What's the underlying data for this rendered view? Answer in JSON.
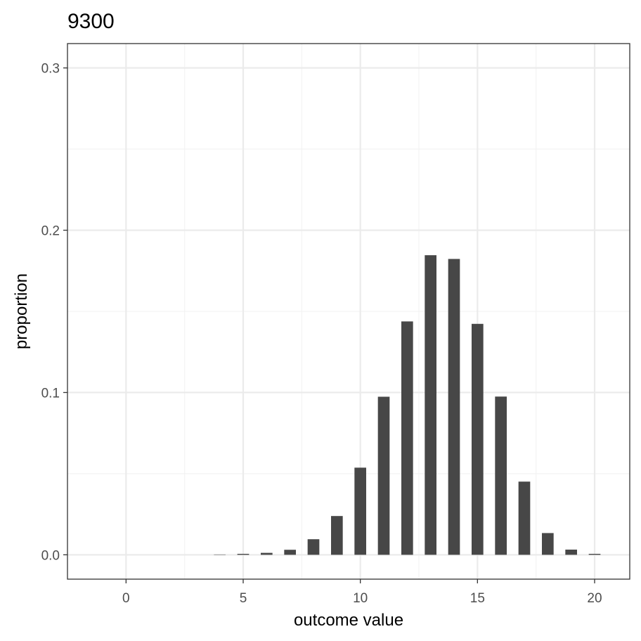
{
  "chart_data": {
    "type": "bar",
    "title": "9300",
    "xlabel": "outcome value",
    "ylabel": "proportion",
    "x": [
      0,
      1,
      2,
      3,
      4,
      5,
      6,
      7,
      8,
      9,
      10,
      11,
      12,
      13,
      14,
      15,
      16,
      17,
      18,
      19,
      20
    ],
    "values": [
      0,
      0,
      0,
      0,
      0.0002,
      0.0006,
      0.0012,
      0.0031,
      0.0096,
      0.0239,
      0.0537,
      0.0974,
      0.1438,
      0.1846,
      0.1823,
      0.1423,
      0.0975,
      0.0451,
      0.0134,
      0.0032,
      0.0006
    ],
    "xlim": [
      -2.5,
      21.5
    ],
    "ylim": [
      -0.015,
      0.315
    ],
    "x_ticks": [
      0,
      5,
      10,
      15,
      20
    ],
    "x_tick_labels": [
      "0",
      "5",
      "10",
      "15",
      "20"
    ],
    "y_ticks": [
      0,
      0.1,
      0.2,
      0.3
    ],
    "y_tick_labels": [
      "0.0",
      "0.1",
      "0.2",
      "0.3"
    ],
    "bar_color": "#474747",
    "grid": true
  }
}
